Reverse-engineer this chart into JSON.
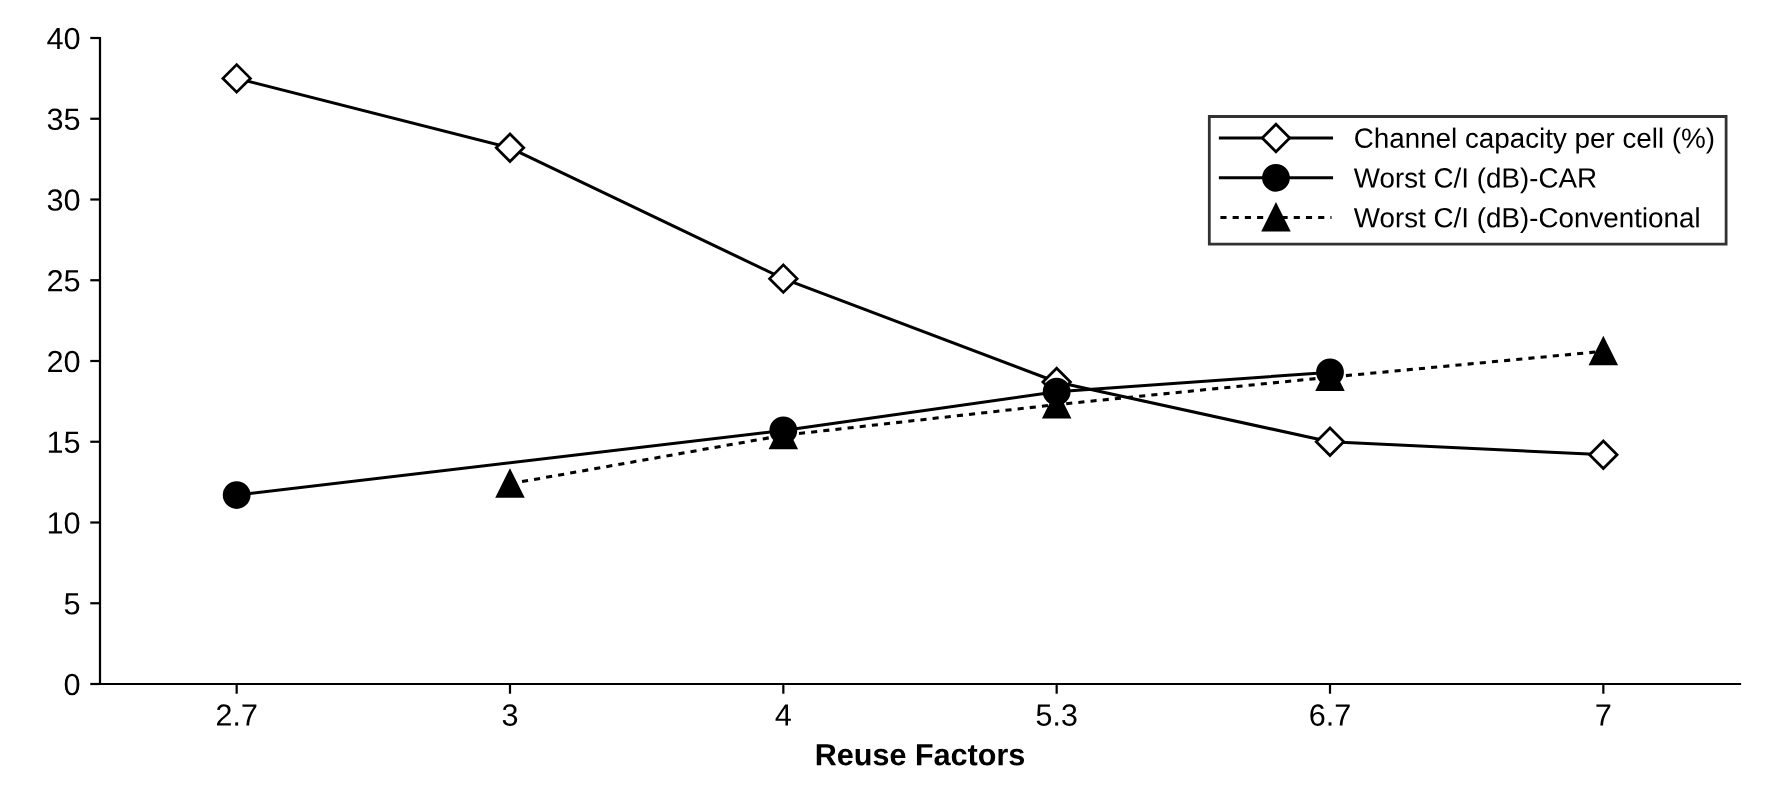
{
  "chart_data": {
    "type": "line",
    "xlabel": "Reuse Factors",
    "categories": [
      "2.7",
      "3",
      "4",
      "5.3",
      "6.7",
      "7"
    ],
    "ylim": [
      0,
      40
    ],
    "yticks": [
      0,
      5,
      10,
      15,
      20,
      25,
      30,
      35,
      40
    ],
    "grid": false,
    "legend": "top right",
    "series": [
      {
        "name": "Channel capacity per cell (%)",
        "color": "#000000",
        "marker": "diamond",
        "line_style": "solid",
        "values": [
          37.5,
          33.2,
          25.1,
          18.7,
          15.0,
          14.2
        ]
      },
      {
        "name": "Worst C/I (dB)-CAR",
        "color": "#000000",
        "marker": "circle",
        "line_style": "solid",
        "values": [
          11.7,
          null,
          15.7,
          18.1,
          19.3,
          null
        ]
      },
      {
        "name": "Worst C/I (dB)-Conventional",
        "color": "#000000",
        "marker": "triangle",
        "line_style": "dotted",
        "values": [
          null,
          12.4,
          15.4,
          17.3,
          19.0,
          20.6
        ]
      }
    ]
  }
}
